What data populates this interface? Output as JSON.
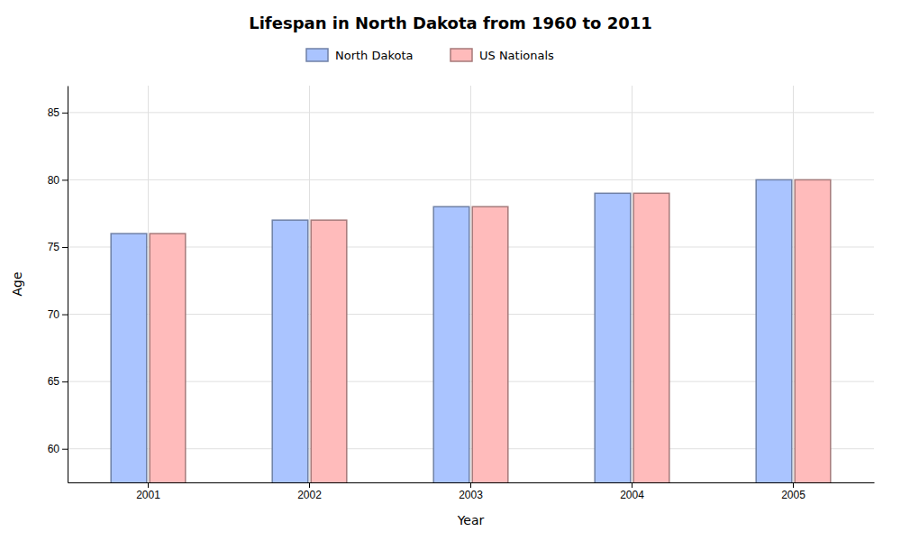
{
  "chart_data": {
    "type": "bar",
    "title": "Lifespan in North Dakota from 1960 to 2011",
    "x_label": "Year",
    "y_label": "Age",
    "categories": [
      "2001",
      "2002",
      "2003",
      "2004",
      "2005"
    ],
    "series": [
      {
        "name": "North Dakota",
        "color": "#aac4ff",
        "values": [
          76,
          77,
          78,
          79,
          80
        ]
      },
      {
        "name": "US Nationals",
        "color": "#ffbbbb",
        "values": [
          76,
          77,
          78,
          79,
          80
        ]
      }
    ],
    "ylim": [
      57.5,
      87
    ],
    "yticks": [
      60,
      65,
      70,
      75,
      80,
      85
    ],
    "grid": true,
    "legend": "top"
  }
}
